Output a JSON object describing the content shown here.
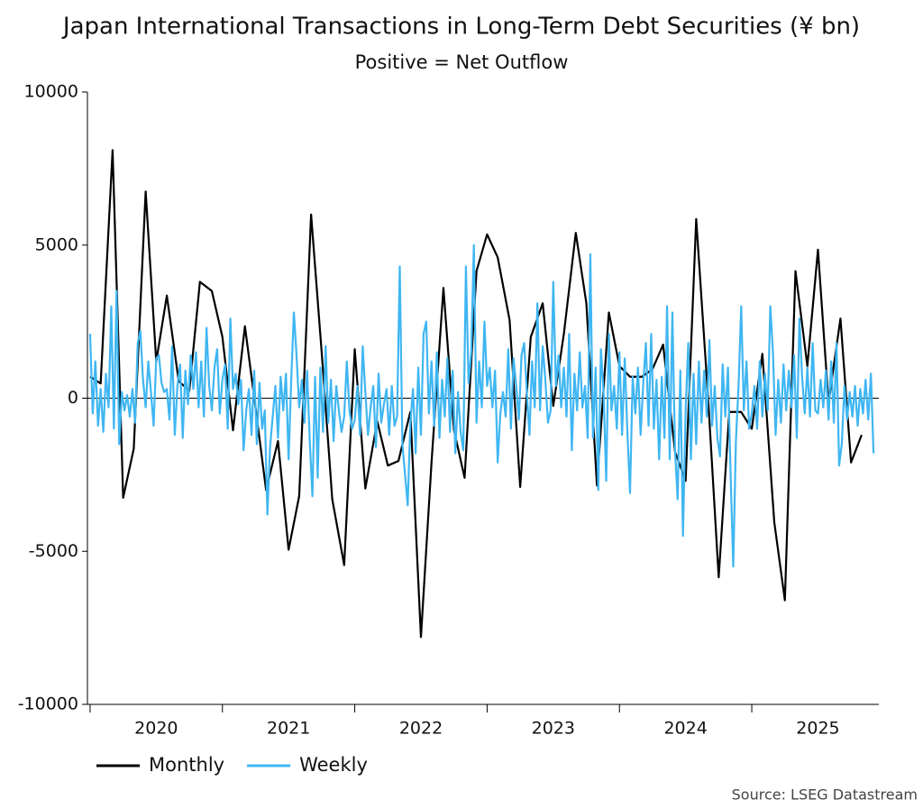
{
  "chart_data": {
    "type": "line",
    "title": "Japan International Transactions in Long-Term Debt Securities (¥ bn)",
    "subtitle": "Positive = Net Outflow",
    "source": "Source: LSEG Datastream",
    "xlim": [
      2019.98,
      2025.96
    ],
    "xticks": [
      2020,
      2021,
      2022,
      2023,
      2024,
      2025
    ],
    "ylim": [
      -10000,
      10000
    ],
    "yticks": [
      -10000,
      -5000,
      0,
      5000,
      10000
    ],
    "grid": false,
    "legend": "bottom-left",
    "series": [
      {
        "name": "Monthly",
        "color": "#000000",
        "x": [
          2020,
          2020.08,
          2020.17,
          2020.25,
          2020.33,
          2020.42,
          2020.5,
          2020.58,
          2020.67,
          2020.75,
          2020.83,
          2020.92,
          2021,
          2021.08,
          2021.17,
          2021.25,
          2021.33,
          2021.42,
          2021.5,
          2021.58,
          2021.67,
          2021.75,
          2021.83,
          2021.92,
          2022,
          2022.08,
          2022.17,
          2022.25,
          2022.33,
          2022.42,
          2022.5,
          2022.58,
          2022.67,
          2022.75,
          2022.83,
          2022.92,
          2023,
          2023.08,
          2023.17,
          2023.25,
          2023.33,
          2023.42,
          2023.5,
          2023.58,
          2023.67,
          2023.75,
          2023.83,
          2023.92,
          2024,
          2024.08,
          2024.17,
          2024.25,
          2024.33,
          2024.42,
          2024.5,
          2024.58,
          2024.67,
          2024.75,
          2024.83,
          2024.92,
          2025,
          2025.08,
          2025.17,
          2025.25,
          2025.33,
          2025.42,
          2025.5,
          2025.58,
          2025.67,
          2025.75,
          2025.83
        ],
        "values": [
          700,
          480,
          8100,
          -3250,
          -1650,
          6750,
          1200,
          3350,
          550,
          250,
          3800,
          3500,
          2000,
          -1050,
          2350,
          -300,
          -3000,
          -1400,
          -4950,
          -3200,
          6000,
          1500,
          -3300,
          -5450,
          1600,
          -2950,
          -750,
          -2200,
          -2050,
          -450,
          -7800,
          -2100,
          3600,
          -1050,
          -2600,
          4150,
          5350,
          4600,
          2550,
          -2900,
          2000,
          3100,
          -250,
          2100,
          5400,
          3100,
          -2850,
          2800,
          1050,
          700,
          700,
          950,
          1750,
          -1750,
          -2700,
          5850,
          0,
          -5850,
          -450,
          -450,
          -1000,
          1450,
          -4050,
          -6600,
          4150,
          1050,
          4850,
          -150,
          2600,
          -2100,
          -1200
        ]
      },
      {
        "name": "Weekly",
        "color": "#3fb6f2",
        "x": [
          2020,
          2020.02,
          2020.04,
          2020.06,
          2020.08,
          2020.1,
          2020.12,
          2020.14,
          2020.16,
          2020.18,
          2020.2,
          2020.22,
          2020.24,
          2020.26,
          2020.28,
          2020.3,
          2020.32,
          2020.34,
          2020.36,
          2020.38,
          2020.4,
          2020.42,
          2020.44,
          2020.46,
          2020.48,
          2020.5,
          2020.52,
          2020.54,
          2020.56,
          2020.58,
          2020.6,
          2020.62,
          2020.64,
          2020.66,
          2020.68,
          2020.7,
          2020.72,
          2020.74,
          2020.76,
          2020.78,
          2020.8,
          2020.82,
          2020.84,
          2020.86,
          2020.88,
          2020.9,
          2020.92,
          2020.94,
          2020.96,
          2020.98,
          2021,
          2021.02,
          2021.04,
          2021.06,
          2021.08,
          2021.1,
          2021.12,
          2021.14,
          2021.16,
          2021.18,
          2021.2,
          2021.22,
          2021.24,
          2021.26,
          2021.28,
          2021.3,
          2021.32,
          2021.34,
          2021.36,
          2021.38,
          2021.4,
          2021.42,
          2021.44,
          2021.46,
          2021.48,
          2021.5,
          2021.52,
          2021.54,
          2021.56,
          2021.58,
          2021.6,
          2021.62,
          2021.64,
          2021.66,
          2021.68,
          2021.7,
          2021.72,
          2021.74,
          2021.76,
          2021.78,
          2021.8,
          2021.82,
          2021.84,
          2021.86,
          2021.88,
          2021.9,
          2021.92,
          2021.94,
          2021.96,
          2021.98,
          2022,
          2022.02,
          2022.04,
          2022.06,
          2022.08,
          2022.1,
          2022.12,
          2022.14,
          2022.16,
          2022.18,
          2022.2,
          2022.22,
          2022.24,
          2022.26,
          2022.28,
          2022.3,
          2022.32,
          2022.34,
          2022.36,
          2022.38,
          2022.4,
          2022.42,
          2022.44,
          2022.46,
          2022.48,
          2022.5,
          2022.52,
          2022.54,
          2022.56,
          2022.58,
          2022.6,
          2022.62,
          2022.64,
          2022.66,
          2022.68,
          2022.7,
          2022.72,
          2022.74,
          2022.76,
          2022.78,
          2022.8,
          2022.82,
          2022.84,
          2022.86,
          2022.88,
          2022.9,
          2022.92,
          2022.94,
          2022.96,
          2022.98,
          2023,
          2023.02,
          2023.04,
          2023.06,
          2023.08,
          2023.1,
          2023.12,
          2023.14,
          2023.16,
          2023.18,
          2023.2,
          2023.22,
          2023.24,
          2023.26,
          2023.28,
          2023.3,
          2023.32,
          2023.34,
          2023.36,
          2023.38,
          2023.4,
          2023.42,
          2023.44,
          2023.46,
          2023.48,
          2023.5,
          2023.52,
          2023.54,
          2023.56,
          2023.58,
          2023.6,
          2023.62,
          2023.64,
          2023.66,
          2023.68,
          2023.7,
          2023.72,
          2023.74,
          2023.76,
          2023.78,
          2023.8,
          2023.82,
          2023.84,
          2023.86,
          2023.88,
          2023.9,
          2023.92,
          2023.94,
          2023.96,
          2023.98,
          2024,
          2024.02,
          2024.04,
          2024.06,
          2024.08,
          2024.1,
          2024.12,
          2024.14,
          2024.16,
          2024.18,
          2024.2,
          2024.22,
          2024.24,
          2024.26,
          2024.28,
          2024.3,
          2024.32,
          2024.34,
          2024.36,
          2024.38,
          2024.4,
          2024.42,
          2024.44,
          2024.46,
          2024.48,
          2024.5,
          2024.52,
          2024.54,
          2024.56,
          2024.58,
          2024.6,
          2024.62,
          2024.64,
          2024.66,
          2024.68,
          2024.7,
          2024.72,
          2024.74,
          2024.76,
          2024.78,
          2024.8,
          2024.82,
          2024.84,
          2024.86,
          2024.88,
          2024.9,
          2024.92,
          2024.94,
          2024.96,
          2024.98,
          2025,
          2025.02,
          2025.04,
          2025.06,
          2025.08,
          2025.1,
          2025.12,
          2025.14,
          2025.16,
          2025.18,
          2025.2,
          2025.22,
          2025.24,
          2025.26,
          2025.28,
          2025.3,
          2025.32,
          2025.34,
          2025.36,
          2025.38,
          2025.4,
          2025.42,
          2025.44,
          2025.46,
          2025.48,
          2025.5,
          2025.52,
          2025.54,
          2025.56,
          2025.58,
          2025.6,
          2025.62,
          2025.64,
          2025.66,
          2025.68,
          2025.7,
          2025.72,
          2025.74,
          2025.76,
          2025.78,
          2025.8,
          2025.82,
          2025.84,
          2025.86,
          2025.88,
          2025.9,
          2025.92
        ],
        "values": [
          2100,
          -500,
          1200,
          -900,
          300,
          -1100,
          800,
          -300,
          3000,
          -1000,
          3500,
          -1500,
          200,
          -400,
          100,
          -600,
          300,
          -800,
          1800,
          2200,
          600,
          -300,
          1200,
          200,
          -900,
          1300,
          1400,
          500,
          200,
          300,
          -700,
          1700,
          -1200,
          400,
          1100,
          -1300,
          900,
          -200,
          1400,
          300,
          1500,
          -300,
          1200,
          -600,
          2300,
          400,
          -400,
          1000,
          1600,
          -500,
          600,
          1100,
          -1000,
          2600,
          300,
          800,
          -200,
          600,
          -1700,
          -400,
          300,
          -1200,
          900,
          -1500,
          500,
          -1000,
          -400,
          -3800,
          -1600,
          -600,
          400,
          -1300,
          700,
          -400,
          800,
          -2000,
          600,
          2800,
          1400,
          -300,
          600,
          -800,
          900,
          -1400,
          -3200,
          700,
          -2600,
          1000,
          -1100,
          1700,
          -800,
          600,
          -1400,
          400,
          -400,
          -1100,
          -600,
          1200,
          -400,
          -1000,
          -700,
          400,
          -1200,
          1700,
          200,
          -1200,
          -300,
          400,
          -1600,
          800,
          -800,
          -200,
          300,
          -1200,
          400,
          -900,
          -600,
          4300,
          -1500,
          -2500,
          -3500,
          -800,
          300,
          -1800,
          1000,
          -1200,
          2100,
          2500,
          -500,
          1200,
          -900,
          1500,
          -1300,
          600,
          -600,
          1300,
          -1100,
          900,
          -1800,
          200,
          -1100,
          -1700,
          4300,
          500,
          1500,
          5000,
          -800,
          1200,
          -300,
          2500,
          400,
          1000,
          -300,
          900,
          -2100,
          -500,
          200,
          -600,
          1600,
          -1000,
          1300,
          400,
          -700,
          1400,
          1800,
          200,
          -1200,
          1200,
          -300,
          3100,
          -400,
          1700,
          600,
          -800,
          -400,
          3800,
          400,
          1400,
          -300,
          1000,
          -600,
          2100,
          -1700,
          800,
          -400,
          1500,
          -300,
          400,
          -1300,
          4700,
          -1300,
          1000,
          -3000,
          1600,
          200,
          -2700,
          2100,
          -400,
          400,
          -1000,
          1500,
          -1200,
          1300,
          -1100,
          -3100,
          700,
          -500,
          1000,
          -1200,
          500,
          1800,
          -900,
          2100,
          -1000,
          600,
          -2000,
          700,
          -1300,
          3000,
          -2000,
          2800,
          -1700,
          -3300,
          900,
          -4500,
          -400,
          1800,
          -2000,
          800,
          -1500,
          1200,
          -800,
          900,
          -600,
          1900,
          -900,
          400,
          -1300,
          -1900,
          1100,
          -600,
          1000,
          -2500,
          -5500,
          -1400,
          400,
          3000,
          -400,
          1200,
          -1000,
          -500,
          400,
          -1000,
          1200,
          -600,
          800,
          -400,
          3000,
          1500,
          -1200,
          600,
          -800,
          1100,
          -400,
          900,
          -300,
          1400,
          -1300,
          2600,
          700,
          -500,
          1000,
          -600,
          1800,
          -400,
          -500,
          600,
          -300,
          900,
          -700,
          1200,
          -800,
          1800,
          -2200,
          -1500,
          400,
          -700,
          200,
          -600,
          400,
          -900,
          300,
          -500,
          600,
          -700,
          800,
          -1800
        ]
      }
    ]
  }
}
